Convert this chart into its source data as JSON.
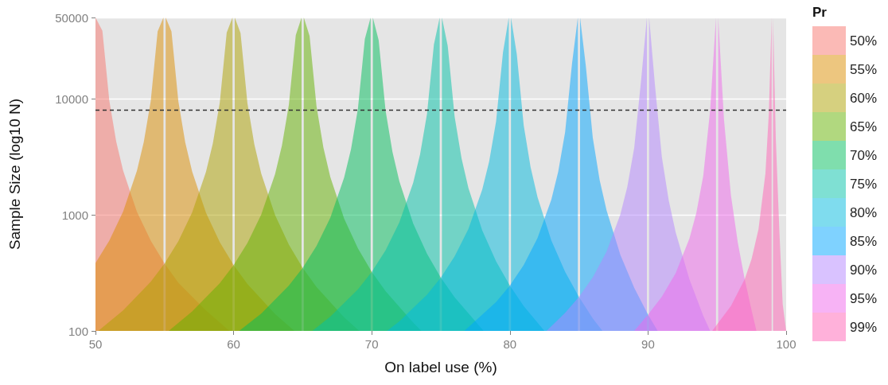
{
  "chart_data": {
    "type": "area",
    "xlabel": "On label use (%)",
    "ylabel": "Sample Size (log10 N)",
    "legend_title": "Pr",
    "xlim": [
      50,
      100
    ],
    "xticks": [
      50,
      60,
      70,
      80,
      90,
      100
    ],
    "ylim": [
      100,
      50000
    ],
    "yticks": [
      100,
      1000,
      10000,
      50000
    ],
    "log": "y",
    "grid": "y",
    "legend": "right",
    "ref_lines": [
      {
        "axis": "y",
        "value": 8000,
        "color": "#333333",
        "line_style": "dashed"
      }
    ],
    "series": [
      {
        "name": "50%",
        "color": "#F8766D",
        "x": [
          50,
          50.5,
          51,
          51.5,
          52,
          53,
          54,
          55,
          56,
          58,
          59.7
        ],
        "values": [
          50000,
          38400,
          9600,
          4270,
          2400,
          1060,
          600,
          380,
          260,
          150,
          100
        ]
      },
      {
        "name": "55%",
        "color": "#DB8E00",
        "x": [
          50,
          51,
          52,
          53,
          53.5,
          54,
          54.5,
          54.92,
          55,
          55.08,
          55.5,
          56,
          56.5,
          57,
          58,
          59,
          60,
          61,
          63,
          64.4
        ],
        "values": [
          384,
          600,
          1065,
          2390,
          4250,
          9540,
          38000,
          50000,
          null,
          50000,
          37900,
          9460,
          4190,
          2350,
          1040,
          581,
          369,
          254,
          140,
          100
        ]
      },
      {
        "name": "60%",
        "color": "#AEA200",
        "x": [
          50.2,
          52,
          54,
          55,
          56,
          57,
          58,
          58.5,
          59,
          59.5,
          59.92,
          60,
          60.08,
          60.5,
          61,
          61.5,
          62,
          63,
          64,
          65,
          66,
          68,
          69.1
        ],
        "values": [
          100,
          150,
          265,
          380,
          591,
          1050,
          2340,
          4140,
          9290,
          37000,
          50000,
          null,
          50000,
          36700,
          9135,
          4040,
          2260,
          995,
          553,
          349,
          239,
          131,
          100
        ]
      },
      {
        "name": "65%",
        "color": "#64B200",
        "x": [
          55.3,
          57,
          59,
          60,
          61,
          62,
          63,
          63.5,
          64,
          64.5,
          64.92,
          65,
          65.08,
          65.5,
          66,
          66.5,
          67,
          68,
          69,
          70,
          71,
          73,
          73.6
        ],
        "values": [
          100,
          147,
          258,
          369,
          571,
          1005,
          2240,
          3960,
          8850,
          35200,
          50000,
          null,
          50000,
          34700,
          8620,
          3800,
          2120,
          928,
          513,
          323,
          220,
          118,
          100
        ]
      },
      {
        "name": "70%",
        "color": "#00BD5C",
        "x": [
          60.4,
          62,
          64,
          65,
          66,
          67,
          68,
          68.5,
          69,
          69.5,
          69.92,
          70,
          70.08,
          70.5,
          71,
          71.5,
          72,
          73,
          74,
          75,
          76,
          78.1
        ],
        "values": [
          100,
          141,
          246,
          349,
          539,
          943,
          2090,
          3680,
          8210,
          32600,
          50000,
          null,
          50000,
          31900,
          7910,
          3480,
          1940,
          841,
          462,
          288,
          195,
          100
        ]
      },
      {
        "name": "75%",
        "color": "#00C1A7",
        "x": [
          65.7,
          67,
          69,
          70,
          71,
          72,
          73,
          73.5,
          74,
          74.5,
          74.92,
          75,
          75.08,
          75.5,
          76,
          76.5,
          77,
          78,
          79,
          80,
          81,
          82.5
        ],
        "values": [
          100,
          133,
          228,
          323,
          494,
          860,
          1890,
          3320,
          7390,
          29200,
          50000,
          null,
          50000,
          28400,
          7000,
          3070,
          1700,
          732,
          398,
          246,
          164,
          100
        ]
      },
      {
        "name": "80%",
        "color": "#00BADE",
        "x": [
          71.1,
          72,
          74,
          75,
          76,
          77,
          78,
          78.5,
          79,
          79.5,
          79.92,
          80,
          80.08,
          80.5,
          81,
          81.5,
          82,
          83,
          84,
          85,
          86,
          86.7
        ],
        "values": [
          100,
          121,
          205,
          288,
          438,
          756,
          1650,
          2880,
          6370,
          25000,
          50000,
          null,
          50000,
          24100,
          5910,
          2570,
          1420,
          602,
          323,
          196,
          128,
          100
        ]
      },
      {
        "name": "85%",
        "color": "#00A6FF",
        "x": [
          76.7,
          79,
          80,
          81,
          82,
          83,
          83.5,
          84,
          84.5,
          84.92,
          85,
          85.08,
          85.5,
          86,
          86.5,
          87,
          88,
          89,
          90,
          90.7
        ],
        "values": [
          100,
          177,
          246,
          369,
          630,
          1350,
          2350,
          5160,
          20100,
          50000,
          null,
          50000,
          19000,
          4620,
          1990,
          1090,
          451,
          235,
          138,
          100
        ]
      },
      {
        "name": "90%",
        "color": "#B385FF",
        "x": [
          82.65,
          84,
          85,
          86,
          87,
          88,
          88.5,
          89,
          89.5,
          89.92,
          90,
          90.08,
          90.5,
          91,
          91.5,
          92,
          93,
          94,
          94.5
        ],
        "values": [
          100,
          143,
          196,
          289,
          483,
          1010,
          1740,
          3760,
          14400,
          50000,
          null,
          50000,
          13200,
          3150,
          1330,
          707,
          278,
          135,
          100
        ]
      },
      {
        "name": "95%",
        "color": "#EF67EB",
        "x": [
          89,
          90,
          91,
          92,
          93,
          93.5,
          94,
          94.5,
          94.92,
          95,
          95.08,
          95.5,
          96,
          96.5,
          97,
          97.5,
          97.85
        ],
        "values": [
          100,
          138,
          197,
          314,
          625,
          1040,
          2170,
          7980,
          50000,
          null,
          50000,
          6600,
          1480,
          576,
          279,
          150,
          100
        ]
      },
      {
        "name": "99%",
        "color": "#FF63B6",
        "x": [
          94.65,
          95,
          96,
          97,
          97.5,
          98,
          98.5,
          98.75,
          98.95,
          99,
          99.05,
          99.25,
          99.5,
          99.75,
          100
        ],
        "values": [
          100,
          114,
          164,
          279,
          416,
          753,
          2270,
          7580,
          50000,
          null,
          50000,
          4570,
          764,
          170,
          100
        ]
      }
    ]
  }
}
